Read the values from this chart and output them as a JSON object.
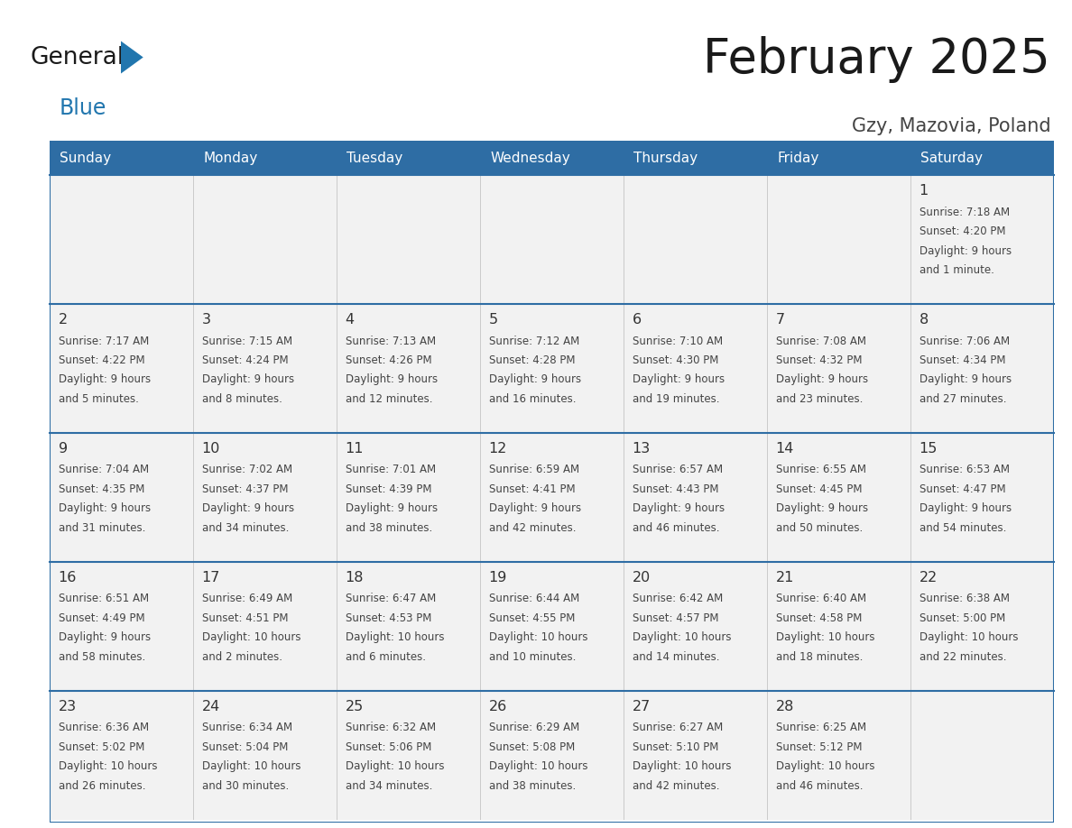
{
  "title": "February 2025",
  "subtitle": "Gzy, Mazovia, Poland",
  "days_of_week": [
    "Sunday",
    "Monday",
    "Tuesday",
    "Wednesday",
    "Thursday",
    "Friday",
    "Saturday"
  ],
  "header_bg": "#2E6DA4",
  "header_text": "#FFFFFF",
  "cell_bg": "#F2F2F2",
  "border_color": "#2E6DA4",
  "cell_line_color": "#AAAAAA",
  "text_color": "#444444",
  "day_num_color": "#333333",
  "title_color": "#1a1a1a",
  "subtitle_color": "#444444",
  "logo_general_color": "#1a1a1a",
  "logo_blue_color": "#2176AE",
  "calendar_data": [
    [
      null,
      null,
      null,
      null,
      null,
      null,
      {
        "day": "1",
        "sunrise": "7:18 AM",
        "sunset": "4:20 PM",
        "daylight": "9 hours",
        "daylight2": "and 1 minute."
      }
    ],
    [
      {
        "day": "2",
        "sunrise": "7:17 AM",
        "sunset": "4:22 PM",
        "daylight": "9 hours",
        "daylight2": "and 5 minutes."
      },
      {
        "day": "3",
        "sunrise": "7:15 AM",
        "sunset": "4:24 PM",
        "daylight": "9 hours",
        "daylight2": "and 8 minutes."
      },
      {
        "day": "4",
        "sunrise": "7:13 AM",
        "sunset": "4:26 PM",
        "daylight": "9 hours",
        "daylight2": "and 12 minutes."
      },
      {
        "day": "5",
        "sunrise": "7:12 AM",
        "sunset": "4:28 PM",
        "daylight": "9 hours",
        "daylight2": "and 16 minutes."
      },
      {
        "day": "6",
        "sunrise": "7:10 AM",
        "sunset": "4:30 PM",
        "daylight": "9 hours",
        "daylight2": "and 19 minutes."
      },
      {
        "day": "7",
        "sunrise": "7:08 AM",
        "sunset": "4:32 PM",
        "daylight": "9 hours",
        "daylight2": "and 23 minutes."
      },
      {
        "day": "8",
        "sunrise": "7:06 AM",
        "sunset": "4:34 PM",
        "daylight": "9 hours",
        "daylight2": "and 27 minutes."
      }
    ],
    [
      {
        "day": "9",
        "sunrise": "7:04 AM",
        "sunset": "4:35 PM",
        "daylight": "9 hours",
        "daylight2": "and 31 minutes."
      },
      {
        "day": "10",
        "sunrise": "7:02 AM",
        "sunset": "4:37 PM",
        "daylight": "9 hours",
        "daylight2": "and 34 minutes."
      },
      {
        "day": "11",
        "sunrise": "7:01 AM",
        "sunset": "4:39 PM",
        "daylight": "9 hours",
        "daylight2": "and 38 minutes."
      },
      {
        "day": "12",
        "sunrise": "6:59 AM",
        "sunset": "4:41 PM",
        "daylight": "9 hours",
        "daylight2": "and 42 minutes."
      },
      {
        "day": "13",
        "sunrise": "6:57 AM",
        "sunset": "4:43 PM",
        "daylight": "9 hours",
        "daylight2": "and 46 minutes."
      },
      {
        "day": "14",
        "sunrise": "6:55 AM",
        "sunset": "4:45 PM",
        "daylight": "9 hours",
        "daylight2": "and 50 minutes."
      },
      {
        "day": "15",
        "sunrise": "6:53 AM",
        "sunset": "4:47 PM",
        "daylight": "9 hours",
        "daylight2": "and 54 minutes."
      }
    ],
    [
      {
        "day": "16",
        "sunrise": "6:51 AM",
        "sunset": "4:49 PM",
        "daylight": "9 hours",
        "daylight2": "and 58 minutes."
      },
      {
        "day": "17",
        "sunrise": "6:49 AM",
        "sunset": "4:51 PM",
        "daylight": "10 hours",
        "daylight2": "and 2 minutes."
      },
      {
        "day": "18",
        "sunrise": "6:47 AM",
        "sunset": "4:53 PM",
        "daylight": "10 hours",
        "daylight2": "and 6 minutes."
      },
      {
        "day": "19",
        "sunrise": "6:44 AM",
        "sunset": "4:55 PM",
        "daylight": "10 hours",
        "daylight2": "and 10 minutes."
      },
      {
        "day": "20",
        "sunrise": "6:42 AM",
        "sunset": "4:57 PM",
        "daylight": "10 hours",
        "daylight2": "and 14 minutes."
      },
      {
        "day": "21",
        "sunrise": "6:40 AM",
        "sunset": "4:58 PM",
        "daylight": "10 hours",
        "daylight2": "and 18 minutes."
      },
      {
        "day": "22",
        "sunrise": "6:38 AM",
        "sunset": "5:00 PM",
        "daylight": "10 hours",
        "daylight2": "and 22 minutes."
      }
    ],
    [
      {
        "day": "23",
        "sunrise": "6:36 AM",
        "sunset": "5:02 PM",
        "daylight": "10 hours",
        "daylight2": "and 26 minutes."
      },
      {
        "day": "24",
        "sunrise": "6:34 AM",
        "sunset": "5:04 PM",
        "daylight": "10 hours",
        "daylight2": "and 30 minutes."
      },
      {
        "day": "25",
        "sunrise": "6:32 AM",
        "sunset": "5:06 PM",
        "daylight": "10 hours",
        "daylight2": "and 34 minutes."
      },
      {
        "day": "26",
        "sunrise": "6:29 AM",
        "sunset": "5:08 PM",
        "daylight": "10 hours",
        "daylight2": "and 38 minutes."
      },
      {
        "day": "27",
        "sunrise": "6:27 AM",
        "sunset": "5:10 PM",
        "daylight": "10 hours",
        "daylight2": "and 42 minutes."
      },
      {
        "day": "28",
        "sunrise": "6:25 AM",
        "sunset": "5:12 PM",
        "daylight": "10 hours",
        "daylight2": "and 46 minutes."
      },
      null
    ]
  ]
}
